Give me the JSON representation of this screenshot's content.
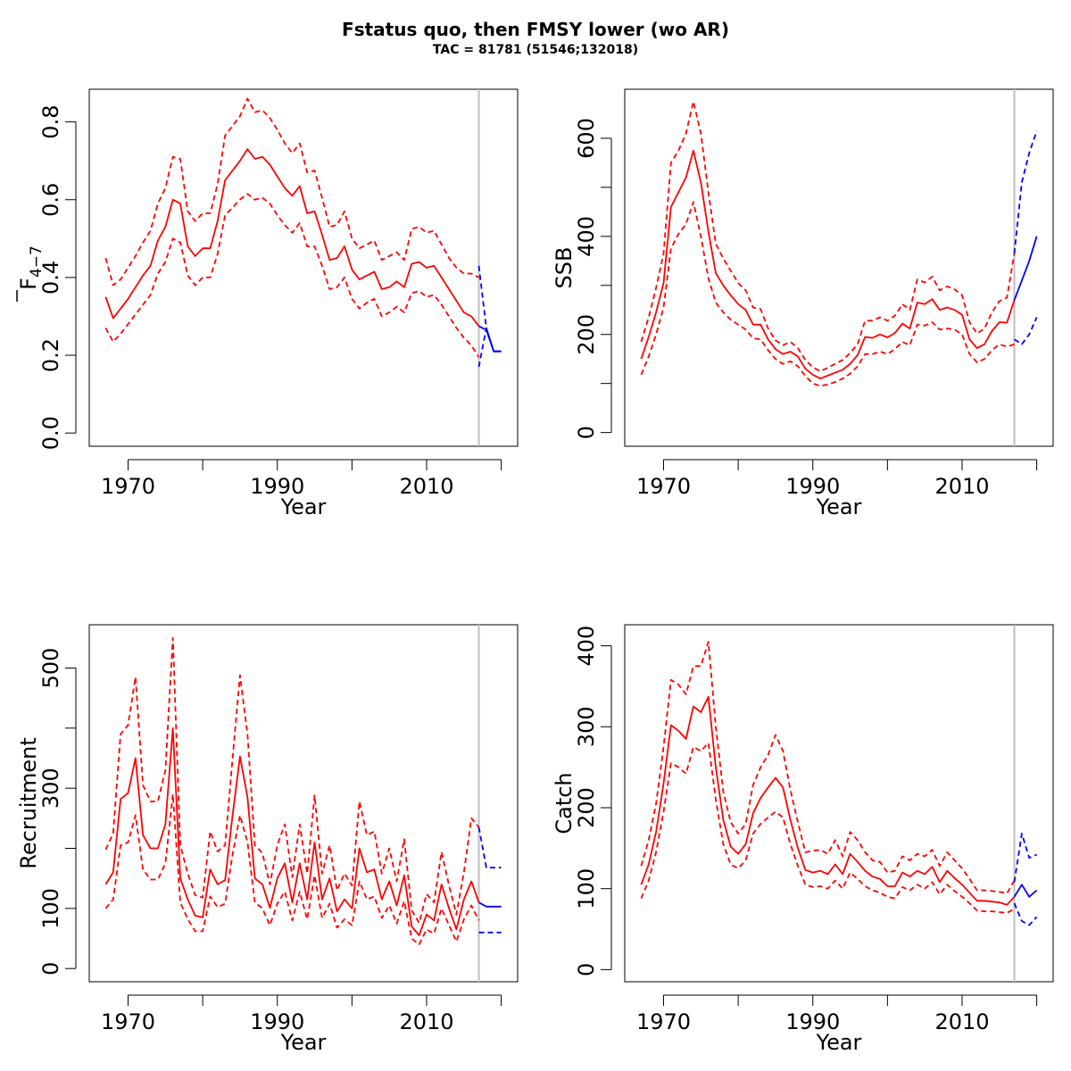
{
  "figure": {
    "title": "Fstatus quo, then FMSY lower (wo AR)",
    "subtitle": "TAC = 81781 (51546;132018)"
  },
  "colors": {
    "history": "#ff0000",
    "forecast": "#0000ff",
    "divider": "#bebebe",
    "axis": "#000000"
  },
  "chart_data": [
    {
      "type": "line",
      "ylabel_main": "F",
      "ylabel_sub": "4−7",
      "xlabel": "Year",
      "xlim": [
        1967,
        2020
      ],
      "ylim": [
        0,
        0.85
      ],
      "xticks": [
        1970,
        1980,
        1990,
        2000,
        2010,
        2020
      ],
      "xtick_labels": [
        "1970",
        "",
        "1990",
        "",
        "2010",
        ""
      ],
      "yticks": [
        0,
        0.2,
        0.4,
        0.6,
        0.8
      ],
      "ytick_labels": [
        "0.0",
        "0.2",
        "0.4",
        "0.6",
        "0.8"
      ],
      "divider_year": 2017,
      "history": {
        "x": [
          1967,
          1968,
          1969,
          1970,
          1971,
          1972,
          1973,
          1974,
          1975,
          1976,
          1977,
          1978,
          1979,
          1980,
          1981,
          1982,
          1983,
          1984,
          1985,
          1986,
          1987,
          1988,
          1989,
          1990,
          1991,
          1992,
          1993,
          1994,
          1995,
          1996,
          1997,
          1998,
          1999,
          2000,
          2001,
          2002,
          2003,
          2004,
          2005,
          2006,
          2007,
          2008,
          2009,
          2010,
          2011,
          2012,
          2013,
          2014,
          2015,
          2016,
          2017
        ],
        "estimate": [
          0.35,
          0.295,
          0.32,
          0.345,
          0.375,
          0.405,
          0.43,
          0.495,
          0.53,
          0.6,
          0.59,
          0.48,
          0.455,
          0.475,
          0.475,
          0.545,
          0.65,
          0.675,
          0.7,
          0.73,
          0.705,
          0.71,
          0.69,
          0.66,
          0.63,
          0.61,
          0.635,
          0.565,
          0.57,
          0.51,
          0.445,
          0.45,
          0.48,
          0.42,
          0.395,
          0.405,
          0.415,
          0.37,
          0.375,
          0.39,
          0.375,
          0.435,
          0.44,
          0.425,
          0.43,
          0.4,
          0.37,
          0.34,
          0.31,
          0.3,
          0.275
        ],
        "lower": [
          0.27,
          0.235,
          0.255,
          0.28,
          0.305,
          0.33,
          0.355,
          0.41,
          0.44,
          0.5,
          0.49,
          0.405,
          0.38,
          0.4,
          0.4,
          0.46,
          0.56,
          0.58,
          0.6,
          0.615,
          0.6,
          0.605,
          0.59,
          0.56,
          0.535,
          0.515,
          0.54,
          0.48,
          0.48,
          0.43,
          0.37,
          0.375,
          0.4,
          0.345,
          0.32,
          0.335,
          0.345,
          0.3,
          0.31,
          0.325,
          0.31,
          0.36,
          0.365,
          0.35,
          0.355,
          0.33,
          0.3,
          0.27,
          0.245,
          0.225,
          0.195
        ],
        "upper": [
          0.45,
          0.38,
          0.395,
          0.425,
          0.455,
          0.49,
          0.52,
          0.59,
          0.63,
          0.71,
          0.705,
          0.57,
          0.545,
          0.565,
          0.565,
          0.64,
          0.765,
          0.79,
          0.815,
          0.86,
          0.825,
          0.83,
          0.81,
          0.78,
          0.745,
          0.72,
          0.745,
          0.67,
          0.675,
          0.605,
          0.53,
          0.535,
          0.57,
          0.5,
          0.475,
          0.485,
          0.495,
          0.445,
          0.455,
          0.465,
          0.445,
          0.525,
          0.53,
          0.515,
          0.52,
          0.485,
          0.45,
          0.425,
          0.41,
          0.41,
          0.4
        ]
      },
      "forecast": {
        "x": [
          2017,
          2018,
          2019,
          2020
        ],
        "estimate": [
          0.275,
          0.265,
          0.21,
          0.21
        ],
        "lower": [
          0.17,
          0.27,
          0.21,
          0.21
        ],
        "upper": [
          0.43,
          0.27,
          0.21,
          0.21
        ]
      }
    },
    {
      "type": "line",
      "ylabel_main": "SSB",
      "ylabel_sub": "",
      "xlabel": "Year",
      "xlim": [
        1967,
        2020
      ],
      "ylim": [
        0,
        650
      ],
      "xticks": [
        1970,
        1980,
        1990,
        2000,
        2010,
        2020
      ],
      "xtick_labels": [
        "1970",
        "",
        "1990",
        "",
        "2010",
        ""
      ],
      "yticks": [
        0,
        100,
        200,
        300,
        400,
        500,
        600
      ],
      "ytick_labels": [
        "0",
        "",
        "200",
        "",
        "400",
        "",
        "600"
      ],
      "divider_year": 2017,
      "history": {
        "x": [
          1967,
          1968,
          1969,
          1970,
          1971,
          1972,
          1973,
          1974,
          1975,
          1976,
          1977,
          1978,
          1979,
          1980,
          1981,
          1982,
          1983,
          1984,
          1985,
          1986,
          1987,
          1988,
          1989,
          1990,
          1991,
          1992,
          1993,
          1994,
          1995,
          1996,
          1997,
          1998,
          1999,
          2000,
          2001,
          2002,
          2003,
          2004,
          2005,
          2006,
          2007,
          2008,
          2009,
          2010,
          2011,
          2012,
          2013,
          2014,
          2015,
          2016,
          2017
        ],
        "estimate": [
          150,
          195,
          245,
          305,
          460,
          490,
          520,
          575,
          510,
          410,
          325,
          300,
          280,
          262,
          250,
          220,
          220,
          190,
          170,
          160,
          165,
          155,
          130,
          118,
          110,
          116,
          122,
          128,
          140,
          158,
          195,
          193,
          200,
          194,
          203,
          222,
          212,
          265,
          262,
          272,
          250,
          255,
          250,
          240,
          190,
          172,
          180,
          207,
          225,
          224,
          270
        ],
        "lower": [
          118,
          155,
          200,
          255,
          375,
          405,
          425,
          470,
          400,
          315,
          265,
          245,
          230,
          220,
          210,
          192,
          190,
          168,
          150,
          140,
          145,
          135,
          115,
          100,
          95,
          98,
          103,
          110,
          120,
          135,
          160,
          160,
          165,
          160,
          170,
          185,
          178,
          220,
          218,
          225,
          210,
          212,
          210,
          200,
          160,
          143,
          150,
          168,
          180,
          175,
          180
        ],
        "upper": [
          185,
          235,
          295,
          365,
          550,
          575,
          610,
          675,
          610,
          490,
          385,
          355,
          330,
          305,
          290,
          255,
          252,
          212,
          188,
          178,
          185,
          172,
          148,
          133,
          125,
          132,
          140,
          148,
          162,
          180,
          228,
          228,
          235,
          228,
          238,
          262,
          250,
          312,
          306,
          318,
          290,
          298,
          292,
          280,
          225,
          202,
          212,
          245,
          268,
          275,
          365
        ]
      },
      "forecast": {
        "x": [
          2017,
          2018,
          2019,
          2020
        ],
        "estimate": [
          270,
          310,
          350,
          400
        ],
        "lower": [
          190,
          180,
          200,
          235
        ],
        "upper": [
          365,
          510,
          570,
          615
        ]
      }
    },
    {
      "type": "line",
      "ylabel_main": "Recruitment",
      "ylabel_sub": "",
      "xlabel": "Year",
      "xlim": [
        1967,
        2020
      ],
      "ylim": [
        0,
        550
      ],
      "xticks": [
        1970,
        1980,
        1990,
        2000,
        2010,
        2020
      ],
      "xtick_labels": [
        "1970",
        "",
        "1990",
        "",
        "2010",
        ""
      ],
      "yticks": [
        0,
        100,
        200,
        300,
        400,
        500
      ],
      "ytick_labels": [
        "0",
        "100",
        "",
        "300",
        "",
        "500"
      ],
      "divider_year": 2017,
      "history": {
        "x": [
          1967,
          1968,
          1969,
          1970,
          1971,
          1972,
          1973,
          1974,
          1975,
          1976,
          1977,
          1978,
          1979,
          1980,
          1981,
          1982,
          1983,
          1984,
          1985,
          1986,
          1987,
          1988,
          1989,
          1990,
          1991,
          1992,
          1993,
          1994,
          1995,
          1996,
          1997,
          1998,
          1999,
          2000,
          2001,
          2002,
          2003,
          2004,
          2005,
          2006,
          2007,
          2008,
          2009,
          2010,
          2011,
          2012,
          2013,
          2014,
          2015,
          2016,
          2017
        ],
        "estimate": [
          140,
          160,
          282,
          292,
          350,
          222,
          200,
          200,
          240,
          400,
          150,
          115,
          88,
          85,
          165,
          140,
          147,
          255,
          353,
          285,
          150,
          140,
          101,
          150,
          175,
          110,
          175,
          115,
          210,
          115,
          150,
          95,
          115,
          100,
          200,
          160,
          165,
          115,
          145,
          105,
          155,
          70,
          55,
          90,
          80,
          140,
          100,
          65,
          115,
          145,
          110
        ],
        "lower": [
          100,
          115,
          205,
          210,
          255,
          165,
          148,
          148,
          175,
          290,
          110,
          82,
          62,
          62,
          120,
          102,
          108,
          190,
          255,
          210,
          110,
          100,
          72,
          108,
          128,
          80,
          128,
          82,
          155,
          84,
          108,
          68,
          82,
          72,
          145,
          115,
          120,
          84,
          105,
          75,
          112,
          50,
          40,
          65,
          58,
          100,
          72,
          45,
          82,
          105,
          80
        ],
        "upper": [
          198,
          225,
          390,
          405,
          485,
          305,
          278,
          278,
          330,
          550,
          205,
          158,
          122,
          118,
          228,
          195,
          205,
          350,
          488,
          390,
          205,
          192,
          140,
          205,
          240,
          152,
          240,
          158,
          288,
          158,
          205,
          130,
          158,
          138,
          278,
          222,
          228,
          158,
          200,
          145,
          215,
          97,
          76,
          124,
          110,
          194,
          138,
          90,
          160,
          250,
          235
        ]
      },
      "forecast": {
        "x": [
          2017,
          2018,
          2019,
          2020
        ],
        "estimate": [
          110,
          103,
          103,
          103
        ],
        "lower": [
          60,
          60,
          60,
          60
        ],
        "upper": [
          235,
          168,
          168,
          168
        ]
      }
    },
    {
      "type": "line",
      "ylabel_main": "Catch",
      "ylabel_sub": "",
      "xlabel": "Year",
      "xlim": [
        1967,
        2020
      ],
      "ylim": [
        0,
        410
      ],
      "xticks": [
        1970,
        1980,
        1990,
        2000,
        2010,
        2020
      ],
      "xtick_labels": [
        "1970",
        "",
        "1990",
        "",
        "2010",
        ""
      ],
      "yticks": [
        0,
        100,
        200,
        300,
        400
      ],
      "ytick_labels": [
        "0",
        "100",
        "200",
        "300",
        "400"
      ],
      "divider_year": 2017,
      "history": {
        "x": [
          1967,
          1968,
          1969,
          1970,
          1971,
          1972,
          1973,
          1974,
          1975,
          1976,
          1977,
          1978,
          1979,
          1980,
          1981,
          1982,
          1983,
          1984,
          1985,
          1986,
          1987,
          1988,
          1989,
          1990,
          1991,
          1992,
          1993,
          1994,
          1995,
          1996,
          1997,
          1998,
          1999,
          2000,
          2001,
          2002,
          2003,
          2004,
          2005,
          2006,
          2007,
          2008,
          2009,
          2010,
          2011,
          2012,
          2013,
          2014,
          2015,
          2016,
          2017
        ],
        "estimate": [
          105,
          130,
          170,
          230,
          302,
          295,
          285,
          325,
          318,
          337,
          250,
          185,
          152,
          143,
          155,
          193,
          212,
          225,
          237,
          225,
          185,
          150,
          123,
          120,
          122,
          118,
          130,
          118,
          143,
          133,
          122,
          115,
          112,
          103,
          103,
          120,
          115,
          122,
          118,
          127,
          108,
          122,
          113,
          105,
          95,
          85,
          85,
          84,
          83,
          80,
          90
        ],
        "lower": [
          88,
          110,
          145,
          195,
          255,
          250,
          242,
          275,
          270,
          280,
          210,
          155,
          130,
          125,
          135,
          168,
          180,
          188,
          195,
          188,
          155,
          128,
          105,
          102,
          103,
          100,
          110,
          100,
          120,
          112,
          103,
          98,
          95,
          90,
          88,
          102,
          98,
          105,
          100,
          108,
          93,
          105,
          97,
          90,
          82,
          73,
          72,
          72,
          71,
          70,
          75
        ],
        "upper": [
          128,
          160,
          205,
          275,
          358,
          352,
          340,
          375,
          375,
          405,
          300,
          220,
          182,
          168,
          180,
          228,
          250,
          265,
          290,
          270,
          222,
          182,
          145,
          147,
          148,
          143,
          160,
          140,
          170,
          160,
          145,
          135,
          133,
          120,
          122,
          140,
          135,
          143,
          140,
          148,
          128,
          145,
          135,
          125,
          112,
          98,
          98,
          97,
          96,
          94,
          110
        ]
      },
      "forecast": {
        "x": [
          2017,
          2018,
          2019,
          2020
        ],
        "estimate": [
          90,
          105,
          90,
          98
        ],
        "lower": [
          82,
          60,
          55,
          65
        ],
        "upper": [
          108,
          168,
          138,
          142
        ]
      }
    }
  ]
}
